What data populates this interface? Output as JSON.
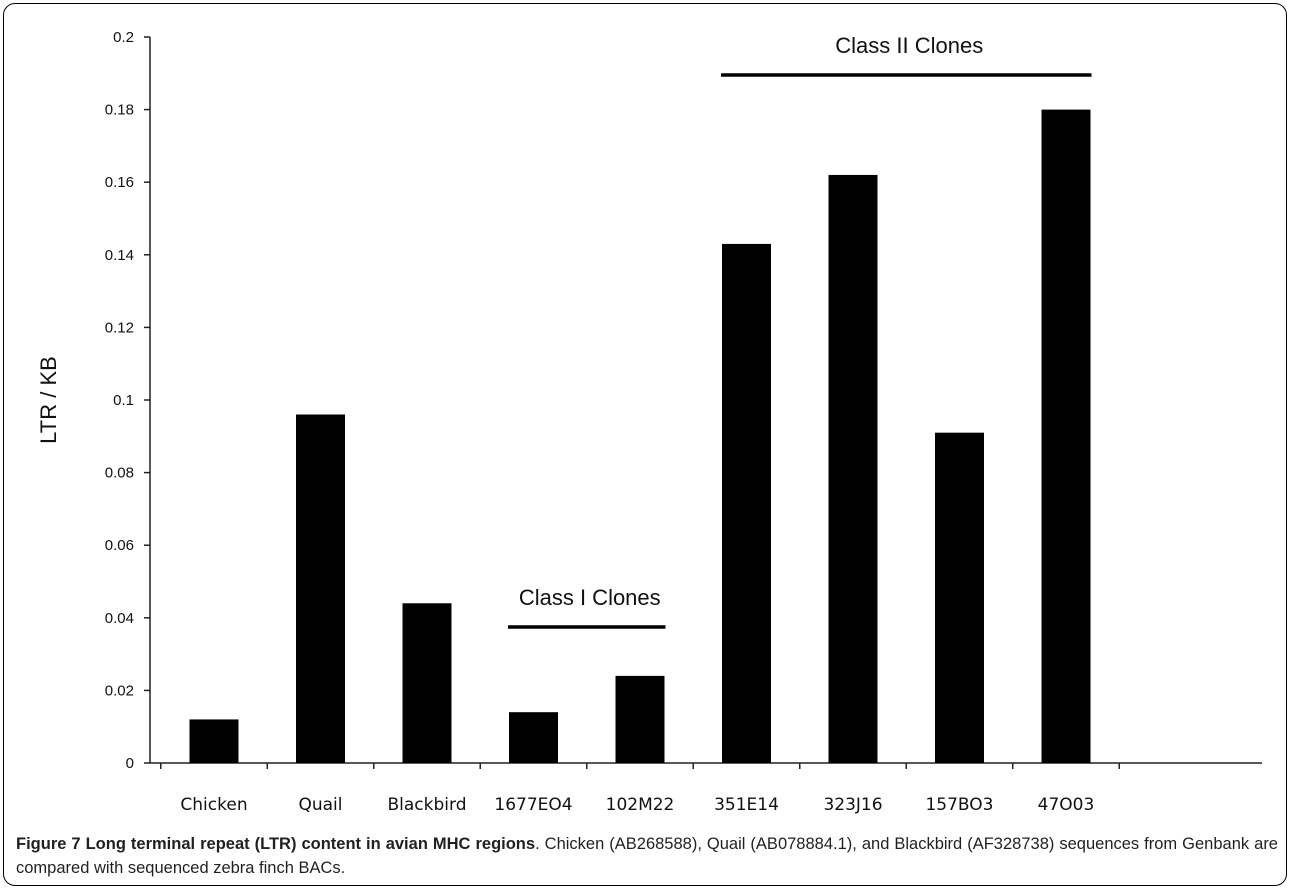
{
  "chart_data": {
    "type": "bar",
    "categories": [
      "Chicken",
      "Quail",
      "Blackbird",
      "1677EO4",
      "102M22",
      "351E14",
      "323J16",
      "157BO3",
      "47O03"
    ],
    "values": [
      0.012,
      0.096,
      0.044,
      0.014,
      0.024,
      0.143,
      0.162,
      0.091,
      0.18
    ],
    "ylabel": "LTR / KB",
    "xlabel": "",
    "ylim": [
      0,
      0.2
    ],
    "yticks": [
      "0",
      "0.02",
      "0.04",
      "0.06",
      "0.08",
      "0.1",
      "0.12",
      "0.14",
      "0.16",
      "0.18",
      "0.2"
    ],
    "grid": false,
    "bar_color": "#000000",
    "annotations": [
      {
        "text": "Class I Clones",
        "from_category": 3,
        "to_category": 4
      },
      {
        "text": "Class II Clones",
        "from_category": 5,
        "to_category": 8
      }
    ]
  },
  "caption": {
    "label": "Figure 7 Long terminal repeat (LTR) content in avian MHC regions",
    "text": ". Chicken (AB268588), Quail (AB078884.1), and Blackbird (AF328738) sequences from Genbank are compared with sequenced zebra finch BACs."
  }
}
